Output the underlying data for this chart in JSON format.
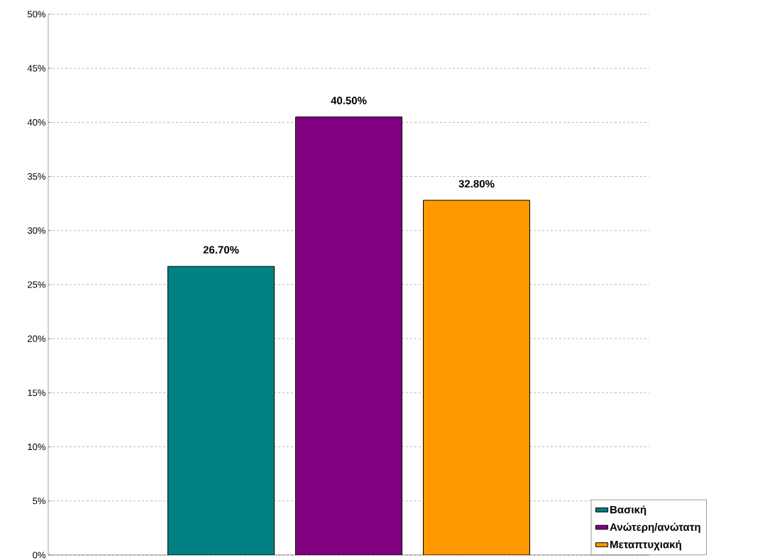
{
  "chart_data": {
    "type": "bar",
    "categories": [
      null
    ],
    "series": [
      {
        "name": "Βασική",
        "color": "#008080",
        "values": [
          26.7
        ],
        "value_labels": [
          "26.70%"
        ]
      },
      {
        "name": "Ανώτερη/ανώτατη",
        "color": "#800080",
        "values": [
          40.5
        ],
        "value_labels": [
          "40.50%"
        ]
      },
      {
        "name": "Μεταπτυχιακή",
        "color": "#ff9900",
        "values": [
          32.8
        ],
        "value_labels": [
          "32.80%"
        ]
      }
    ],
    "ylim": [
      0,
      50
    ],
    "yticks": [
      {
        "value": 0,
        "label": "0%"
      },
      {
        "value": 5,
        "label": "5%"
      },
      {
        "value": 10,
        "label": "10%"
      },
      {
        "value": 15,
        "label": "15%"
      },
      {
        "value": 20,
        "label": "20%"
      },
      {
        "value": 25,
        "label": "25%"
      },
      {
        "value": 30,
        "label": "30%"
      },
      {
        "value": 35,
        "label": "35%"
      },
      {
        "value": 40,
        "label": "40%"
      },
      {
        "value": 45,
        "label": "45%"
      },
      {
        "value": 50,
        "label": "50%"
      }
    ],
    "grid": "y",
    "legend": "bottom right"
  }
}
